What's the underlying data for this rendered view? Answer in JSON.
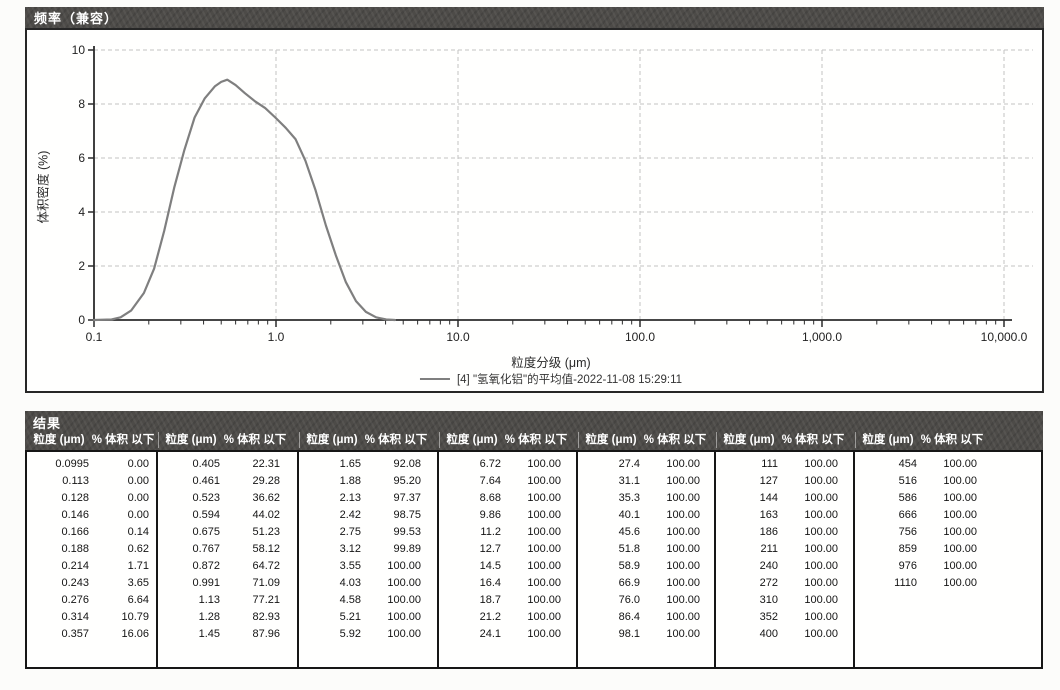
{
  "chart": {
    "title": "频率（兼容）",
    "ylabel": "体积密度 (%)",
    "xlabel": "粒度分级 (μm)",
    "legend_label": "[4] \"氢氧化铝\"的平均值-2022-11-08 15:29:11"
  },
  "chart_data": {
    "type": "line",
    "title": "频率（兼容）",
    "xlabel": "粒度分级 (μm)",
    "ylabel": "体积密度 (%)",
    "x_scale": "log",
    "xlim": [
      0.1,
      10000
    ],
    "ylim": [
      0,
      10
    ],
    "y_ticks": [
      0,
      2,
      4,
      6,
      8,
      10
    ],
    "x_ticks": [
      0.1,
      1,
      10,
      100,
      1000,
      10000
    ],
    "x_tick_labels": [
      "0.1",
      "1.0",
      "10.0",
      "100.0",
      "1,000.0",
      "10,000.0"
    ],
    "grid": true,
    "legend_position": "bottom",
    "series": [
      {
        "name": "[4] \"氢氧化铝\"的平均值-2022-11-08 15:29:11",
        "color": "#7f7f7f",
        "points": [
          [
            0.1,
            0
          ],
          [
            0.125,
            0.02
          ],
          [
            0.14,
            0.1
          ],
          [
            0.16,
            0.35
          ],
          [
            0.188,
            1.0
          ],
          [
            0.214,
            1.9
          ],
          [
            0.243,
            3.3
          ],
          [
            0.276,
            4.9
          ],
          [
            0.314,
            6.3
          ],
          [
            0.357,
            7.5
          ],
          [
            0.405,
            8.2
          ],
          [
            0.461,
            8.65
          ],
          [
            0.5,
            8.82
          ],
          [
            0.54,
            8.9
          ],
          [
            0.6,
            8.7
          ],
          [
            0.675,
            8.4
          ],
          [
            0.767,
            8.1
          ],
          [
            0.872,
            7.85
          ],
          [
            0.991,
            7.5
          ],
          [
            1.13,
            7.12
          ],
          [
            1.28,
            6.7
          ],
          [
            1.45,
            5.9
          ],
          [
            1.65,
            4.8
          ],
          [
            1.88,
            3.5
          ],
          [
            2.13,
            2.4
          ],
          [
            2.42,
            1.4
          ],
          [
            2.75,
            0.7
          ],
          [
            3.12,
            0.3
          ],
          [
            3.55,
            0.1
          ],
          [
            4.03,
            0.02
          ],
          [
            4.5,
            0
          ]
        ]
      }
    ]
  },
  "results": {
    "title": "结果",
    "size_header": "粒度 (μm)",
    "pct_header": "% 体积 以下",
    "groups": [
      [
        [
          "0.0995",
          "0.00"
        ],
        [
          "0.113",
          "0.00"
        ],
        [
          "0.128",
          "0.00"
        ],
        [
          "0.146",
          "0.00"
        ],
        [
          "0.166",
          "0.14"
        ],
        [
          "0.188",
          "0.62"
        ],
        [
          "0.214",
          "1.71"
        ],
        [
          "0.243",
          "3.65"
        ],
        [
          "0.276",
          "6.64"
        ],
        [
          "0.314",
          "10.79"
        ],
        [
          "0.357",
          "16.06"
        ]
      ],
      [
        [
          "0.405",
          "22.31"
        ],
        [
          "0.461",
          "29.28"
        ],
        [
          "0.523",
          "36.62"
        ],
        [
          "0.594",
          "44.02"
        ],
        [
          "0.675",
          "51.23"
        ],
        [
          "0.767",
          "58.12"
        ],
        [
          "0.872",
          "64.72"
        ],
        [
          "0.991",
          "71.09"
        ],
        [
          "1.13",
          "77.21"
        ],
        [
          "1.28",
          "82.93"
        ],
        [
          "1.45",
          "87.96"
        ]
      ],
      [
        [
          "1.65",
          "92.08"
        ],
        [
          "1.88",
          "95.20"
        ],
        [
          "2.13",
          "97.37"
        ],
        [
          "2.42",
          "98.75"
        ],
        [
          "2.75",
          "99.53"
        ],
        [
          "3.12",
          "99.89"
        ],
        [
          "3.55",
          "100.00"
        ],
        [
          "4.03",
          "100.00"
        ],
        [
          "4.58",
          "100.00"
        ],
        [
          "5.21",
          "100.00"
        ],
        [
          "5.92",
          "100.00"
        ]
      ],
      [
        [
          "6.72",
          "100.00"
        ],
        [
          "7.64",
          "100.00"
        ],
        [
          "8.68",
          "100.00"
        ],
        [
          "9.86",
          "100.00"
        ],
        [
          "11.2",
          "100.00"
        ],
        [
          "12.7",
          "100.00"
        ],
        [
          "14.5",
          "100.00"
        ],
        [
          "16.4",
          "100.00"
        ],
        [
          "18.7",
          "100.00"
        ],
        [
          "21.2",
          "100.00"
        ],
        [
          "24.1",
          "100.00"
        ]
      ],
      [
        [
          "27.4",
          "100.00"
        ],
        [
          "31.1",
          "100.00"
        ],
        [
          "35.3",
          "100.00"
        ],
        [
          "40.1",
          "100.00"
        ],
        [
          "45.6",
          "100.00"
        ],
        [
          "51.8",
          "100.00"
        ],
        [
          "58.9",
          "100.00"
        ],
        [
          "66.9",
          "100.00"
        ],
        [
          "76.0",
          "100.00"
        ],
        [
          "86.4",
          "100.00"
        ],
        [
          "98.1",
          "100.00"
        ]
      ],
      [
        [
          "111",
          "100.00"
        ],
        [
          "127",
          "100.00"
        ],
        [
          "144",
          "100.00"
        ],
        [
          "163",
          "100.00"
        ],
        [
          "186",
          "100.00"
        ],
        [
          "211",
          "100.00"
        ],
        [
          "240",
          "100.00"
        ],
        [
          "272",
          "100.00"
        ],
        [
          "310",
          "100.00"
        ],
        [
          "352",
          "100.00"
        ],
        [
          "400",
          "100.00"
        ]
      ],
      [
        [
          "454",
          "100.00"
        ],
        [
          "516",
          "100.00"
        ],
        [
          "586",
          "100.00"
        ],
        [
          "666",
          "100.00"
        ],
        [
          "756",
          "100.00"
        ],
        [
          "859",
          "100.00"
        ],
        [
          "976",
          "100.00"
        ],
        [
          "1110",
          "100.00"
        ]
      ]
    ]
  },
  "colors": {
    "bar_bg": "#4d4b48",
    "bar_text": "#ffffff",
    "panel_border": "#262626",
    "grid": "#c3c3c3",
    "axis": "#2b2b2b",
    "curve": "#7f7f7f",
    "page_bg": "#fcfcfa"
  }
}
